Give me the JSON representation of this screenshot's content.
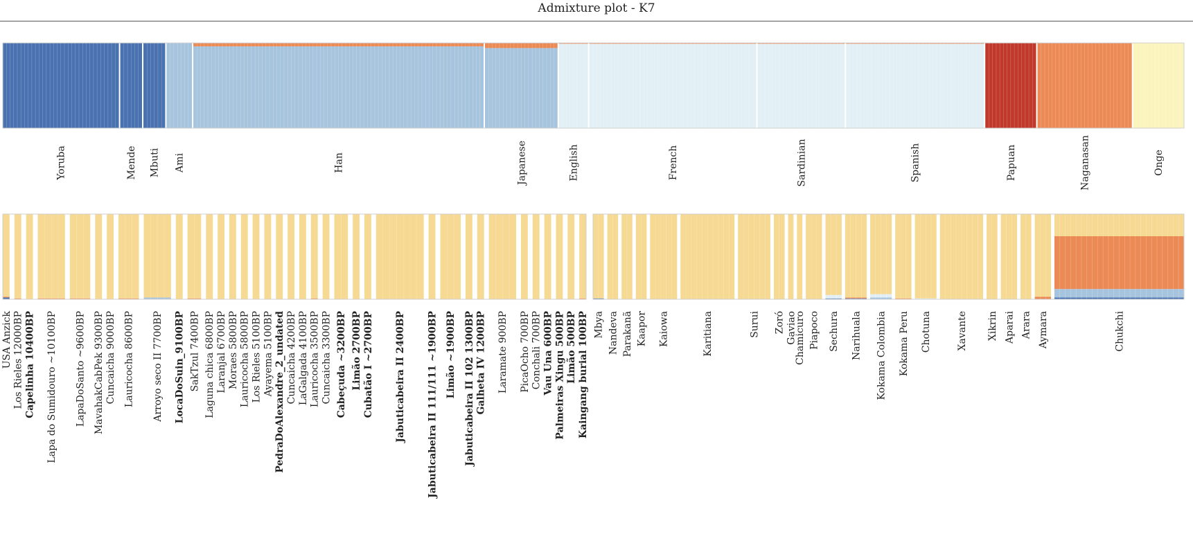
{
  "title": "Admixture plot  -  K7",
  "chart_data": {
    "type": "admixture-bar",
    "K": 7,
    "colors": {
      "africa": "#4a72b0",
      "eastasia": "#a7c4df",
      "europe": "#e2f0f5",
      "papua": "#c0392b",
      "siberia": "#ec8a55",
      "andaman": "#fbf5bd",
      "america": "#f6d992"
    },
    "reference_panel": {
      "populations": [
        {
          "name": "Yoruba",
          "n": 32,
          "composition": {
            "africa": 1.0
          }
        },
        {
          "name": "Mende",
          "n": 6,
          "composition": {
            "africa": 1.0
          }
        },
        {
          "name": "Mbuti",
          "n": 6,
          "composition": {
            "africa": 1.0
          }
        },
        {
          "name": "Ami",
          "n": 7,
          "composition": {
            "eastasia": 1.0
          }
        },
        {
          "name": "Han",
          "n": 80,
          "composition": {
            "eastasia": 0.96,
            "siberia": 0.04
          }
        },
        {
          "name": "Japanese",
          "n": 20,
          "composition": {
            "eastasia": 0.94,
            "siberia": 0.06
          }
        },
        {
          "name": "English",
          "n": 8,
          "composition": {
            "europe": 0.99,
            "siberia": 0.01
          }
        },
        {
          "name": "French",
          "n": 46,
          "composition": {
            "europe": 0.99,
            "siberia": 0.01
          }
        },
        {
          "name": "Sardinian",
          "n": 24,
          "composition": {
            "europe": 0.99,
            "siberia": 0.01
          }
        },
        {
          "name": "Spanish",
          "n": 38,
          "composition": {
            "europe": 0.99,
            "siberia": 0.01
          }
        },
        {
          "name": "Papuan",
          "n": 14,
          "composition": {
            "papua": 1.0
          }
        },
        {
          "name": "Naganasan",
          "n": 26,
          "composition": {
            "siberia": 1.0
          }
        },
        {
          "name": "Onge",
          "n": 14,
          "composition": {
            "andaman": 1.0
          }
        }
      ]
    },
    "ancient_panel": {
      "populations": [
        {
          "name": "USA Anzick",
          "bold": false,
          "n": 1,
          "composition": {
            "america": 0.97,
            "africa": 0.02,
            "siberia": 0.01
          }
        },
        {
          "name": "Los Rieles 12000BP",
          "bold": false,
          "n": 1,
          "composition": {
            "america": 0.99,
            "siberia": 0.01
          }
        },
        {
          "name": "Capelinha 10400BP",
          "bold": true,
          "n": 1,
          "composition": {
            "america": 1.0
          }
        },
        {
          "name": "Lapa do Sumidouro ~10100BP",
          "bold": false,
          "n": 4,
          "composition": {
            "america": 0.99,
            "siberia": 0.01
          }
        },
        {
          "name": "LapaDoSanto ~9600BP",
          "bold": false,
          "n": 3,
          "composition": {
            "america": 0.99,
            "siberia": 0.01
          }
        },
        {
          "name": "MavahakCabPek 9300BP",
          "bold": false,
          "n": 1,
          "composition": {
            "america": 1.0
          }
        },
        {
          "name": "Cuncaicha 9000BP",
          "bold": false,
          "n": 1,
          "composition": {
            "america": 1.0
          }
        },
        {
          "name": "Lauricocha 8600BP",
          "bold": false,
          "n": 3,
          "composition": {
            "america": 0.99,
            "siberia": 0.01
          }
        },
        {
          "name": "Arroyo seco II 7700BP",
          "bold": false,
          "n": 4,
          "composition": {
            "america": 0.98,
            "eastasia": 0.02
          }
        },
        {
          "name": "LocaDoSuin_9100BP",
          "bold": true,
          "n": 1,
          "composition": {
            "america": 1.0
          }
        },
        {
          "name": "SakTzul 7400BP",
          "bold": false,
          "n": 2,
          "composition": {
            "america": 0.99,
            "siberia": 0.01
          }
        },
        {
          "name": "Laguna chica 6800BP",
          "bold": false,
          "n": 1,
          "composition": {
            "america": 1.0
          }
        },
        {
          "name": "Laranjal 6700BP",
          "bold": false,
          "n": 1,
          "composition": {
            "america": 1.0
          }
        },
        {
          "name": "Moraes 5800BP",
          "bold": false,
          "n": 1,
          "composition": {
            "america": 1.0
          }
        },
        {
          "name": "Lauricocha 5800BP",
          "bold": false,
          "n": 1,
          "composition": {
            "america": 1.0
          }
        },
        {
          "name": "Los Rieles 5100BP",
          "bold": false,
          "n": 1,
          "composition": {
            "america": 1.0
          }
        },
        {
          "name": "Ayayema 5100BP",
          "bold": false,
          "n": 1,
          "composition": {
            "america": 1.0
          }
        },
        {
          "name": "PedraDoAlexandre_2_undated",
          "bold": true,
          "n": 1,
          "composition": {
            "america": 1.0
          }
        },
        {
          "name": "Cuncaicha 4200BP",
          "bold": false,
          "n": 1,
          "composition": {
            "america": 1.0
          }
        },
        {
          "name": "LaGalgada 4100BP",
          "bold": false,
          "n": 1,
          "composition": {
            "america": 1.0
          }
        },
        {
          "name": "Lauricocha 3500BP",
          "bold": false,
          "n": 1,
          "composition": {
            "america": 0.99,
            "siberia": 0.01
          }
        },
        {
          "name": "Cuncaicha 3300BP",
          "bold": false,
          "n": 1,
          "composition": {
            "america": 1.0
          }
        },
        {
          "name": "Cabeçuda ~3200BP",
          "bold": true,
          "n": 2,
          "composition": {
            "america": 1.0
          }
        },
        {
          "name": "Limão 2700BP",
          "bold": true,
          "n": 1,
          "composition": {
            "america": 1.0
          }
        },
        {
          "name": "Cubatão I ~2700BP",
          "bold": true,
          "n": 1,
          "composition": {
            "america": 1.0
          }
        },
        {
          "name": "Jabuticabeira II 2400BP",
          "bold": true,
          "n": 7,
          "composition": {
            "america": 1.0
          }
        },
        {
          "name": "Jabuticabeira II 111/111 ~1900BP",
          "bold": true,
          "n": 1,
          "composition": {
            "america": 1.0
          }
        },
        {
          "name": "Limão ~1900BP",
          "bold": true,
          "n": 3,
          "composition": {
            "america": 1.0
          }
        },
        {
          "name": "Jabuticabeira II 102 1300BP",
          "bold": true,
          "n": 1,
          "composition": {
            "america": 1.0
          }
        },
        {
          "name": "Galheta IV 1200BP",
          "bold": true,
          "n": 1,
          "composition": {
            "america": 1.0
          }
        },
        {
          "name": "Laramate 900BP",
          "bold": false,
          "n": 4,
          "composition": {
            "america": 1.0
          }
        },
        {
          "name": "PicaOcho 700BP",
          "bold": false,
          "n": 1,
          "composition": {
            "america": 1.0
          }
        },
        {
          "name": "Conchali 700BP",
          "bold": false,
          "n": 1,
          "composition": {
            "america": 1.0
          }
        },
        {
          "name": "Vau Una 600BP",
          "bold": true,
          "n": 1,
          "composition": {
            "america": 1.0
          }
        },
        {
          "name": "Palmeiras Xingu 500BP",
          "bold": true,
          "n": 1,
          "composition": {
            "america": 1.0
          }
        },
        {
          "name": "Limão 500BP",
          "bold": true,
          "n": 1,
          "composition": {
            "america": 1.0
          }
        },
        {
          "name": "Kaingang burial 100BP",
          "bold": true,
          "n": 1,
          "composition": {
            "america": 0.99,
            "siberia": 0.01
          }
        }
      ]
    },
    "modern_panel": {
      "populations": [
        {
          "name": "Mbya",
          "n": 2,
          "composition": {
            "america": 0.99,
            "africa": 0.01
          }
        },
        {
          "name": "Nandeva",
          "n": 2,
          "composition": {
            "america": 1.0
          }
        },
        {
          "name": "Parakanã",
          "n": 2,
          "composition": {
            "america": 1.0
          }
        },
        {
          "name": "Kaapor",
          "n": 2,
          "composition": {
            "america": 1.0
          }
        },
        {
          "name": "Kaiowa",
          "n": 5,
          "composition": {
            "america": 1.0
          }
        },
        {
          "name": "Karitiana",
          "n": 10,
          "composition": {
            "america": 1.0
          }
        },
        {
          "name": "Surui",
          "n": 6,
          "composition": {
            "america": 1.0
          }
        },
        {
          "name": "Zoró",
          "n": 2,
          "composition": {
            "america": 1.0
          }
        },
        {
          "name": "Gaviao",
          "n": 1,
          "composition": {
            "america": 1.0
          }
        },
        {
          "name": "Chamicuro",
          "n": 1,
          "composition": {
            "america": 1.0
          }
        },
        {
          "name": "Piapoco",
          "n": 3,
          "composition": {
            "america": 1.0
          }
        },
        {
          "name": "Sechura",
          "n": 3,
          "composition": {
            "america": 0.95,
            "europe": 0.04,
            "africa": 0.01
          }
        },
        {
          "name": "Narihuala",
          "n": 4,
          "composition": {
            "america": 0.98,
            "siberia": 0.01,
            "africa": 0.01
          }
        },
        {
          "name": "Kokama Colombia",
          "n": 4,
          "composition": {
            "america": 0.94,
            "europe": 0.04,
            "eastasia": 0.02
          }
        },
        {
          "name": "Kokama Peru",
          "n": 3,
          "composition": {
            "america": 0.99,
            "siberia": 0.01
          }
        },
        {
          "name": "Chotuna",
          "n": 4,
          "composition": {
            "america": 0.99,
            "europe": 0.01
          }
        },
        {
          "name": "Xavante",
          "n": 8,
          "composition": {
            "america": 1.0
          }
        },
        {
          "name": "Xikrin",
          "n": 2,
          "composition": {
            "america": 1.0
          }
        },
        {
          "name": "Aparai",
          "n": 3,
          "composition": {
            "america": 1.0
          }
        },
        {
          "name": "Arara",
          "n": 2,
          "composition": {
            "america": 1.0
          }
        },
        {
          "name": "Aymara",
          "n": 3,
          "composition": {
            "america": 0.97,
            "siberia": 0.03
          }
        },
        {
          "name": "Chukchi",
          "n": 24,
          "composition": {
            "siberia": 0.62,
            "america": 0.26,
            "eastasia": 0.1,
            "africa": 0.02
          }
        }
      ]
    }
  }
}
